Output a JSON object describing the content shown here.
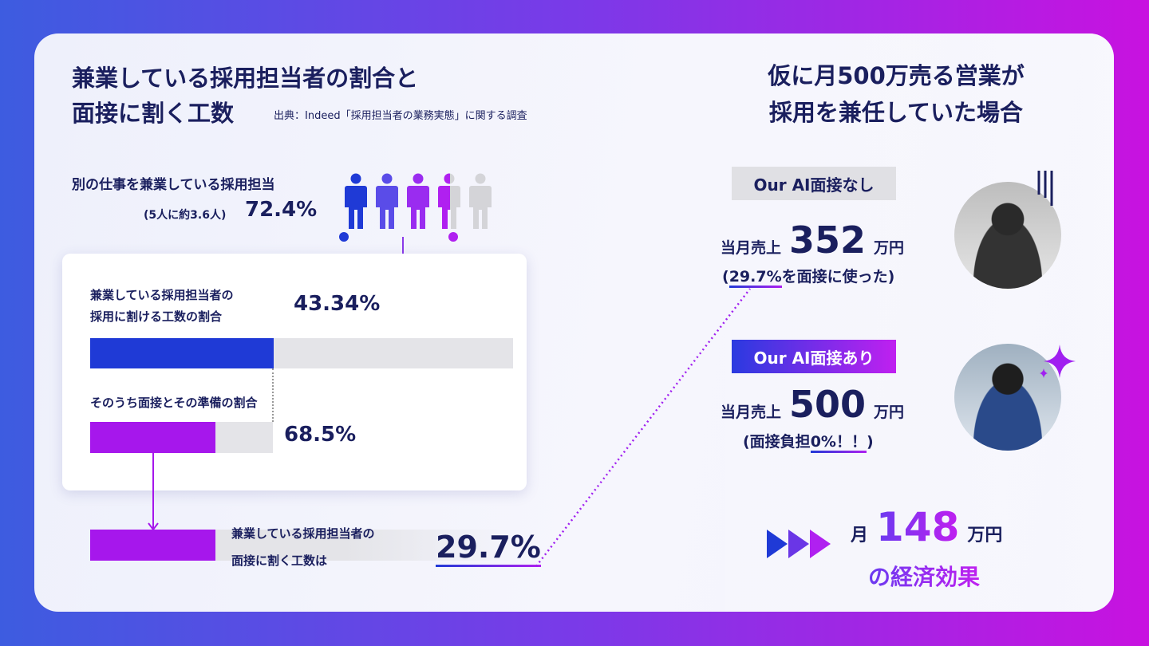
{
  "left": {
    "title_line1": "兼業している採用担当者の割合と",
    "title_line2": "面接に割く工数",
    "source": "出典：Indeed「採用担当者の業務実態」に関する調査",
    "side_job_label": "別の仕事を兼業している採用担当",
    "side_job_sub": "(5人に約3.6人)",
    "side_job_pct": "72.4%",
    "side_job_fraction": 0.724,
    "ratio1_label_line1": "兼業している採用担当者の",
    "ratio1_label_line2": "採用に割ける工数の割合",
    "ratio1_pct": "43.34%",
    "ratio1_value": 43.34,
    "ratio2_label": "そのうち面接とその準備の割合",
    "ratio2_pct": "68.5%",
    "ratio2_value": 68.5,
    "result_label_line1": "兼業している採用担当者の",
    "result_label_line2": "面接に割く工数は",
    "result_pct": "29.7%",
    "result_value": 29.7
  },
  "right": {
    "title_line1": "仮に月500万売る営業が",
    "title_line2": "採用を兼任していた場合",
    "without": {
      "tag": "Our AI面接なし",
      "sales_label": "当月売上",
      "sales_value": "352",
      "unit": "万円",
      "note_pre": "(",
      "note_hl": "29.7%",
      "note_post": "を面接に使った)"
    },
    "with": {
      "tag": "Our AI面接あり",
      "sales_label": "当月売上",
      "sales_value": "500",
      "unit": "万円",
      "note_pre": "(面接負担",
      "note_hl": "0%！！",
      "note_post": ")"
    },
    "effect_prefix": "月",
    "effect_value": "148",
    "effect_unit": "万円",
    "effect_suffix": "の経済効果"
  },
  "colors": {
    "navy": "#1a1f5e",
    "blue": "#1f3ad6",
    "purple": "#a020f0",
    "gray": "#e4e4e8"
  }
}
